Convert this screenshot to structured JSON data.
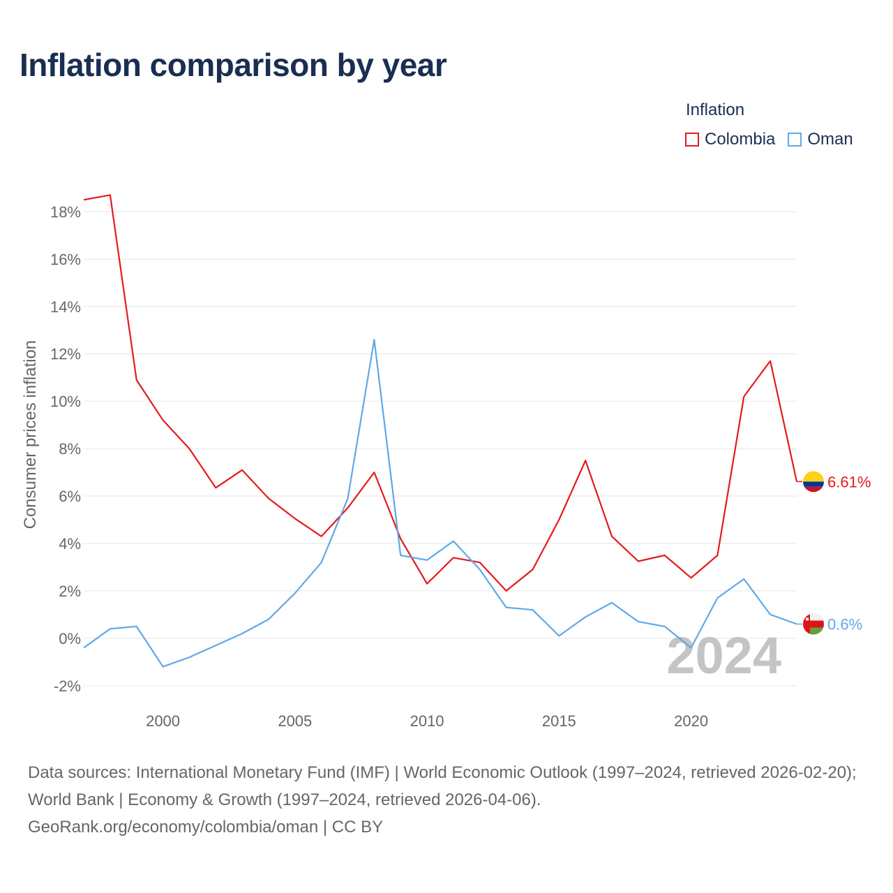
{
  "title": "Inflation comparison by year",
  "legend": {
    "title": "Inflation",
    "items": [
      {
        "label": "Colombia",
        "color": "#e41a1c"
      },
      {
        "label": "Oman",
        "color": "#5fa8e8"
      }
    ]
  },
  "year_watermark": "2024",
  "footer": {
    "line1": "Data sources: International Monetary Fund (IMF) | World Economic Outlook (1997–2024, retrieved 2026-02-20); World Bank | Economy & Growth (1997–2024, retrieved 2026-04-06).",
    "line2": "GeoRank.org/economy/colombia/oman | CC BY"
  },
  "chart_data": {
    "type": "line",
    "title": "Inflation comparison by year",
    "xlabel": "",
    "ylabel": "Consumer prices inflation",
    "x": [
      1997,
      1998,
      1999,
      2000,
      2001,
      2002,
      2003,
      2004,
      2005,
      2006,
      2007,
      2008,
      2009,
      2010,
      2011,
      2012,
      2013,
      2014,
      2015,
      2016,
      2017,
      2018,
      2019,
      2020,
      2021,
      2022,
      2023,
      2024
    ],
    "xlim": [
      1997,
      2024
    ],
    "ylim": [
      -2.8,
      18.6
    ],
    "x_ticks": [
      2000,
      2005,
      2010,
      2015,
      2020
    ],
    "x_tick_labels": [
      "2000",
      "2005",
      "2010",
      "2015",
      "2020"
    ],
    "y_ticks": [
      -2,
      0,
      2,
      4,
      6,
      8,
      10,
      12,
      14,
      16,
      18
    ],
    "y_tick_labels": [
      "-2%",
      "0%",
      "2%",
      "4%",
      "6%",
      "8%",
      "10%",
      "12%",
      "14%",
      "16%",
      "18%"
    ],
    "grid": true,
    "legend_position": "top-right",
    "series": [
      {
        "name": "Colombia",
        "color": "#e41a1c",
        "values": [
          18.5,
          18.7,
          10.9,
          9.2,
          8.0,
          6.35,
          7.1,
          5.9,
          5.05,
          4.3,
          5.5,
          7.0,
          4.2,
          2.3,
          3.4,
          3.2,
          2.0,
          2.9,
          5.0,
          7.5,
          4.3,
          3.25,
          3.5,
          2.55,
          3.5,
          10.2,
          11.7,
          6.61
        ],
        "end_label": "6.61%",
        "flag": "colombia-flag"
      },
      {
        "name": "Oman",
        "color": "#5fa8e8",
        "values": [
          -0.4,
          0.4,
          0.5,
          -1.2,
          -0.8,
          -0.3,
          0.2,
          0.8,
          1.9,
          3.2,
          5.9,
          12.6,
          3.5,
          3.3,
          4.1,
          2.9,
          1.3,
          1.2,
          0.1,
          0.9,
          1.5,
          0.7,
          0.5,
          -0.4,
          1.7,
          2.5,
          1.0,
          0.6
        ],
        "end_label": "0.6%",
        "flag": "oman-flag"
      }
    ]
  }
}
